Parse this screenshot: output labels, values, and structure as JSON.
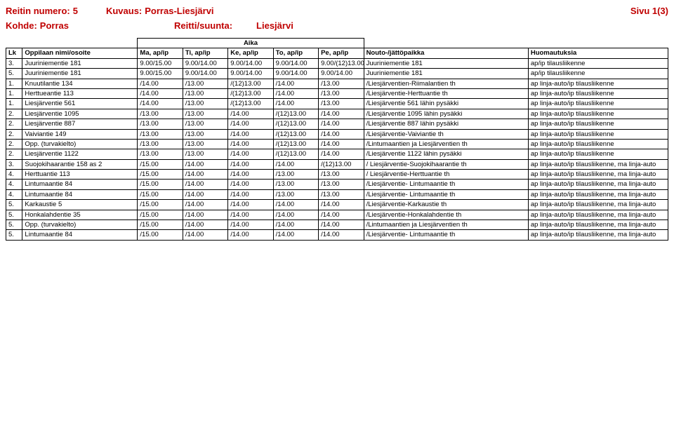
{
  "header": {
    "route_label": "Reitin numero:",
    "route_value": "5",
    "desc_label": "Kuvaus:",
    "desc_value": "Porras-Liesjärvi",
    "page_label": "Sivu 1(3)",
    "target_label": "Kohde:",
    "target_value": "Porras",
    "dir_label": "Reitti/suunta:",
    "dir_value": "Liesjärvi"
  },
  "table": {
    "aika_label": "Aika",
    "columns": [
      "Lk",
      "Oppilaan nimi/osoite",
      "Ma, ap/ip",
      "Ti, ap/ip",
      "Ke, ap/ip",
      "To, ap/ip",
      "Pe, ap/ip",
      "Nouto-/jättöpaikka",
      "Huomautuksia"
    ],
    "rows": [
      [
        "3.",
        "Juuriniementie 181",
        "9.00/15.00",
        "9.00/14.00",
        "9.00/14.00",
        "9.00/14.00",
        "9.00/(12)13.00",
        "Juuriniementie 181",
        "ap/ip tilausliikenne"
      ],
      [
        "5.",
        "Juuriniementie 181",
        "9.00/15.00",
        "9.00/14.00",
        "9.00/14.00",
        "9.00/14.00",
        "9.00/14.00",
        "Juuriniementie 181",
        "ap/ip tilausliikenne"
      ],
      [
        "1.",
        "Knuutilantie 134",
        "/14.00",
        "/13.00",
        "/(12)13.00",
        "/14.00",
        "/13.00",
        "/Liesjärventien-Riimalantien th",
        "ap linja-auto/ip tilausliikenne"
      ],
      [
        "1.",
        "Herttueantie 113",
        "/14.00",
        "/13.00",
        "/(12)13.00",
        "/14.00",
        "/13.00",
        "/Liesjärventie-Herttuantie th",
        "ap linja-auto/ip tilausliikenne"
      ],
      [
        "1.",
        "Liesjärventie 561",
        "/14.00",
        "/13.00",
        "/(12)13.00",
        "/14.00",
        "/13.00",
        "/Liesjärventie 561 lähin pysäkki",
        "ap linja-auto/ip tilausliikenne"
      ],
      [
        "2.",
        "Liesjärventie 1095",
        "/13.00",
        "/13.00",
        "/14.00",
        "/(12)13.00",
        "/14.00",
        "/Liesjärventie 1095 lähin pysäkki",
        "ap linja-auto/ip tilausliikenne"
      ],
      [
        "2.",
        "Liesjärventie 887",
        "/13.00",
        "/13.00",
        "/14.00",
        "/(12)13.00",
        "/14.00",
        "/Liesjärventie 887 lähin pysäkki",
        "ap linja-auto/ip tilausliikenne"
      ],
      [
        "2.",
        "Vaiviantie 149",
        "/13.00",
        "/13.00",
        "/14.00",
        "/(12)13.00",
        "/14.00",
        "/Liesjärventie-Vaiviantie th",
        "ap linja-auto/ip tilausliikenne"
      ],
      [
        "2.",
        "Opp. (turvakielto)",
        "/13.00",
        "/13.00",
        "/14.00",
        "/(12)13.00",
        "/14.00",
        "/Lintumaantien ja Liesjärventien th",
        "ap linja-auto/ip tilausliikenne"
      ],
      [
        "2.",
        "Liesjärventie 1122",
        "/13.00",
        "/13.00",
        "/14.00",
        "/(12)13.00",
        "/14.00",
        "/Liesjärventie 1122 lähin pysäkki",
        "ap linja-auto/ip tilausliikenne"
      ],
      [
        "3.",
        "Suojokihaarantie 158 as 2",
        "/15.00",
        "/14.00",
        "/14.00",
        "/14.00",
        "/(12)13.00",
        "/ Liesjärventie-Suojokihaarantie th",
        "ap linja-auto/ip tilausliikenne, ma linja-auto"
      ],
      [
        "4.",
        "Herttuantie 113",
        "/15.00",
        "/14.00",
        "/14.00",
        "/13.00",
        "/13.00",
        "/ Liesjärventie-Herttuantie th",
        "ap linja-auto/ip tilausliikenne, ma linja-auto"
      ],
      [
        "4.",
        "Lintumaantie 84",
        "/15.00",
        "/14.00",
        "/14.00",
        "/13.00",
        "/13.00",
        "/Liesjärventie- Lintumaantie th",
        "ap linja-auto/ip tilausliikenne, ma linja-auto"
      ],
      [
        "4.",
        "Lintumaantie 84",
        "/15.00",
        "/14.00",
        "/14.00",
        "/13.00",
        "/13.00",
        "/Liesjärventie- Lintumaantie th",
        "ap linja-auto/ip tilausliikenne, ma linja-auto"
      ],
      [
        "5.",
        "Karkaustie 5",
        "/15.00",
        "/14.00",
        "/14.00",
        "/14.00",
        "/14.00",
        "/Liesjärventie-Karkaustie th",
        "ap linja-auto/ip tilausliikenne, ma linja-auto"
      ],
      [
        "5.",
        "Honkalahdentie 35",
        "/15.00",
        "/14.00",
        "/14.00",
        "/14.00",
        "/14.00",
        "/Liesjärventie-Honkalahdentie th",
        "ap linja-auto/ip tilausliikenne, ma linja-auto"
      ],
      [
        "5.",
        "Opp. (turvakielto)",
        "/15.00",
        "/14.00",
        "/14.00",
        "/14.00",
        "/14.00",
        "/Lintumaantien ja Liesjärventien th",
        "ap linja-auto/ip tilausliikenne, ma linja-auto"
      ],
      [
        "5.",
        "Lintumaantie 84",
        "/15.00",
        "/14.00",
        "/14.00",
        "/14.00",
        "/14.00",
        "/Liesjärventie- Lintumaantie th",
        "ap linja-auto/ip tilausliikenne, ma linja-auto"
      ]
    ]
  }
}
